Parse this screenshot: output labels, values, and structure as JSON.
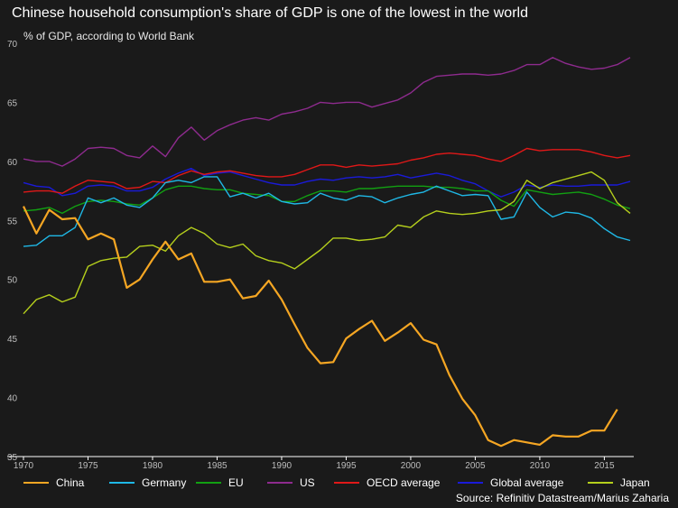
{
  "title": "Chinese household consumption's share of GDP is one of the lowest in the world",
  "subtitle": "% of GDP, according to World Bank",
  "source": "Source: Refinitiv Datastream/Marius Zaharia",
  "chart_data": {
    "type": "line",
    "title": "Chinese household consumption's share of GDP is one of the lowest in the world",
    "ylabel": "% of GDP, according to World Bank",
    "xlabel": "",
    "xlim": [
      1970,
      2017
    ],
    "ylim": [
      35,
      70
    ],
    "x_ticks": [
      1970,
      1975,
      1980,
      1985,
      1990,
      1995,
      2000,
      2005,
      2010,
      2015
    ],
    "y_ticks": [
      35,
      40,
      45,
      50,
      55,
      60,
      65,
      70
    ],
    "grid": false,
    "legend_position": "bottom",
    "x": [
      1970,
      1971,
      1972,
      1973,
      1974,
      1975,
      1976,
      1977,
      1978,
      1979,
      1980,
      1981,
      1982,
      1983,
      1984,
      1985,
      1986,
      1987,
      1988,
      1989,
      1990,
      1991,
      1992,
      1993,
      1994,
      1995,
      1996,
      1997,
      1998,
      1999,
      2000,
      2001,
      2002,
      2003,
      2004,
      2005,
      2006,
      2007,
      2008,
      2009,
      2010,
      2011,
      2012,
      2013,
      2014,
      2015,
      2016,
      2017
    ],
    "series": [
      {
        "name": "China",
        "color": "#f5a623",
        "values": [
          56.2,
          53.9,
          55.9,
          55.1,
          55.2,
          53.4,
          53.9,
          53.4,
          49.3,
          50.0,
          51.7,
          53.2,
          51.7,
          52.2,
          49.8,
          49.8,
          50.0,
          48.4,
          48.6,
          49.9,
          48.3,
          46.2,
          44.2,
          42.9,
          43.0,
          45.0,
          45.8,
          46.5,
          44.8,
          45.5,
          46.3,
          44.9,
          44.5,
          41.9,
          39.9,
          38.5,
          36.4,
          35.9,
          36.4,
          36.2,
          36.0,
          36.8,
          36.7,
          36.7,
          37.2,
          37.2,
          39.0,
          null
        ]
      },
      {
        "name": "Germany",
        "color": "#1fb8e6",
        "values": [
          52.8,
          52.9,
          53.7,
          53.7,
          54.4,
          56.9,
          56.5,
          56.9,
          56.3,
          56.1,
          56.9,
          58.2,
          58.4,
          58.2,
          58.7,
          58.7,
          57.0,
          57.3,
          56.9,
          57.3,
          56.6,
          56.4,
          56.5,
          57.3,
          56.9,
          56.7,
          57.1,
          57.0,
          56.5,
          56.9,
          57.2,
          57.4,
          57.9,
          57.5,
          57.1,
          57.2,
          57.1,
          55.1,
          55.3,
          57.4,
          56.1,
          55.3,
          55.7,
          55.6,
          55.2,
          54.3,
          53.6,
          53.3
        ]
      },
      {
        "name": "EU",
        "color": "#12a012",
        "values": [
          55.8,
          55.9,
          56.1,
          55.6,
          56.2,
          56.6,
          56.7,
          56.6,
          56.4,
          56.3,
          56.9,
          57.6,
          57.9,
          57.9,
          57.7,
          57.6,
          57.6,
          57.3,
          57.2,
          57.1,
          56.6,
          56.6,
          57.1,
          57.5,
          57.5,
          57.4,
          57.7,
          57.7,
          57.8,
          57.9,
          57.9,
          57.9,
          57.8,
          57.8,
          57.7,
          57.5,
          57.5,
          56.7,
          56.2,
          57.6,
          57.4,
          57.2,
          57.3,
          57.4,
          57.2,
          56.8,
          56.3,
          56.0
        ]
      },
      {
        "name": "US",
        "color": "#8e2b8e",
        "values": [
          60.2,
          60.0,
          60.0,
          59.6,
          60.2,
          61.1,
          61.2,
          61.1,
          60.5,
          60.3,
          61.3,
          60.4,
          62.0,
          62.9,
          61.8,
          62.6,
          63.1,
          63.5,
          63.7,
          63.5,
          64.0,
          64.2,
          64.5,
          65.0,
          64.9,
          65.0,
          65.0,
          64.6,
          64.9,
          65.2,
          65.8,
          66.7,
          67.2,
          67.3,
          67.4,
          67.4,
          67.3,
          67.4,
          67.7,
          68.2,
          68.2,
          68.8,
          68.3,
          68.0,
          67.8,
          67.9,
          68.2,
          68.8
        ]
      },
      {
        "name": "OECD average",
        "color": "#e01818",
        "values": [
          57.4,
          57.5,
          57.5,
          57.3,
          57.9,
          58.4,
          58.3,
          58.2,
          57.7,
          57.8,
          58.3,
          58.2,
          58.8,
          59.2,
          58.9,
          59.1,
          59.2,
          59.0,
          58.8,
          58.7,
          58.7,
          58.9,
          59.3,
          59.7,
          59.7,
          59.5,
          59.7,
          59.6,
          59.7,
          59.8,
          60.1,
          60.3,
          60.6,
          60.7,
          60.6,
          60.5,
          60.2,
          60.0,
          60.5,
          61.1,
          60.9,
          61.0,
          61.0,
          61.0,
          60.8,
          60.5,
          60.3,
          60.5
        ]
      },
      {
        "name": "Global average",
        "color": "#1a1ad9",
        "values": [
          58.2,
          57.9,
          57.8,
          57.1,
          57.3,
          57.9,
          58.0,
          57.9,
          57.5,
          57.5,
          57.8,
          58.5,
          59.0,
          59.4,
          58.8,
          59.0,
          59.1,
          58.8,
          58.5,
          58.2,
          58.0,
          58.0,
          58.3,
          58.5,
          58.4,
          58.6,
          58.7,
          58.6,
          58.7,
          58.9,
          58.6,
          58.8,
          59.0,
          58.8,
          58.4,
          58.1,
          57.5,
          57.0,
          57.4,
          58.0,
          57.8,
          58.0,
          57.9,
          57.9,
          58.0,
          58.0,
          58.0,
          58.3
        ]
      },
      {
        "name": "Japan",
        "color": "#b5cf1c",
        "values": [
          47.1,
          48.3,
          48.7,
          48.1,
          48.5,
          51.1,
          51.6,
          51.8,
          51.9,
          52.8,
          52.9,
          52.4,
          53.7,
          54.4,
          53.9,
          53.0,
          52.7,
          53.0,
          52.0,
          51.6,
          51.4,
          50.9,
          51.7,
          52.5,
          53.5,
          53.5,
          53.3,
          53.4,
          53.6,
          54.6,
          54.4,
          55.3,
          55.8,
          55.6,
          55.5,
          55.6,
          55.8,
          55.9,
          56.6,
          58.4,
          57.7,
          58.2,
          58.5,
          58.8,
          59.1,
          58.4,
          56.5,
          55.6
        ]
      }
    ]
  }
}
